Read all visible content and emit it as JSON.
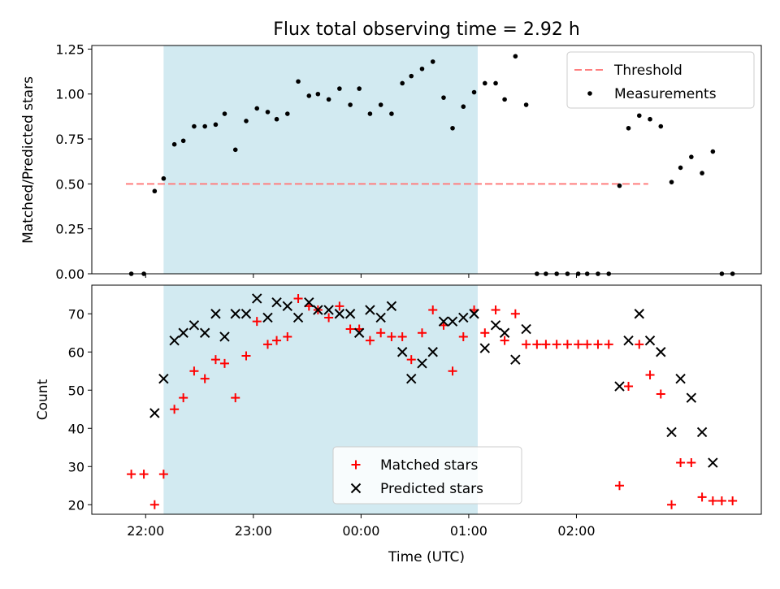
{
  "chart_data": [
    {
      "type": "scatter",
      "title": "Flux total observing time = 2.92 h",
      "xlabel": "",
      "ylabel": "Matched/Predicted stars",
      "ylim": [
        0.0,
        1.27
      ],
      "yticks": [
        "0.00",
        "0.25",
        "0.50",
        "0.75",
        "1.00",
        "1.25"
      ],
      "shaded_region": {
        "x_start": "22:10",
        "x_end": "01:05",
        "color": "#add8e6"
      },
      "threshold": {
        "name": "Threshold",
        "y": 0.5,
        "x_start": "21:49",
        "x_end": "02:40",
        "color": "#ff7f7f"
      },
      "series": [
        {
          "name": "Measurements",
          "marker": "dot",
          "color": "#000000",
          "points": [
            [
              "21:52",
              0.0
            ],
            [
              "21:59",
              0.0
            ],
            [
              "22:05",
              0.46
            ],
            [
              "22:10",
              0.53
            ],
            [
              "22:16",
              0.72
            ],
            [
              "22:21",
              0.74
            ],
            [
              "22:27",
              0.82
            ],
            [
              "22:33",
              0.82
            ],
            [
              "22:39",
              0.83
            ],
            [
              "22:44",
              0.89
            ],
            [
              "22:50",
              0.69
            ],
            [
              "22:56",
              0.85
            ],
            [
              "23:02",
              0.92
            ],
            [
              "23:08",
              0.9
            ],
            [
              "23:13",
              0.86
            ],
            [
              "23:19",
              0.89
            ],
            [
              "23:25",
              1.07
            ],
            [
              "23:31",
              0.99
            ],
            [
              "23:36",
              1.0
            ],
            [
              "23:42",
              0.97
            ],
            [
              "23:48",
              1.03
            ],
            [
              "23:54",
              0.94
            ],
            [
              "23:59",
              1.03
            ],
            [
              "00:05",
              0.89
            ],
            [
              "00:11",
              0.94
            ],
            [
              "00:17",
              0.89
            ],
            [
              "00:23",
              1.06
            ],
            [
              "00:28",
              1.1
            ],
            [
              "00:34",
              1.14
            ],
            [
              "00:40",
              1.18
            ],
            [
              "00:46",
              0.98
            ],
            [
              "00:51",
              0.81
            ],
            [
              "00:57",
              0.93
            ],
            [
              "01:03",
              1.01
            ],
            [
              "01:09",
              1.06
            ],
            [
              "01:15",
              1.06
            ],
            [
              "01:20",
              0.97
            ],
            [
              "01:26",
              1.21
            ],
            [
              "01:32",
              0.94
            ],
            [
              "01:38",
              0.0
            ],
            [
              "01:43",
              0.0
            ],
            [
              "01:49",
              0.0
            ],
            [
              "01:55",
              0.0
            ],
            [
              "02:01",
              0.0
            ],
            [
              "02:06",
              0.0
            ],
            [
              "02:12",
              0.0
            ],
            [
              "02:18",
              0.0
            ],
            [
              "02:24",
              0.49
            ],
            [
              "02:29",
              0.81
            ],
            [
              "02:35",
              0.88
            ],
            [
              "02:41",
              0.86
            ],
            [
              "02:47",
              0.82
            ],
            [
              "02:53",
              0.51
            ],
            [
              "02:58",
              0.59
            ],
            [
              "03:04",
              0.65
            ],
            [
              "03:10",
              0.56
            ],
            [
              "03:16",
              0.68
            ],
            [
              "03:21",
              0.0
            ],
            [
              "03:27",
              0.0
            ]
          ]
        }
      ],
      "legend": {
        "position": "top-right",
        "entries": [
          "Threshold",
          "Measurements"
        ]
      }
    },
    {
      "type": "scatter",
      "title": "",
      "xlabel": "Time (UTC)",
      "ylabel": "Count",
      "ylim": [
        17.5,
        77.5
      ],
      "yticks": [
        "20",
        "30",
        "40",
        "50",
        "60",
        "70"
      ],
      "xticks": [
        "22:00",
        "23:00",
        "00:00",
        "01:00",
        "02:00"
      ],
      "shaded_region": {
        "x_start": "22:10",
        "x_end": "01:05",
        "color": "#add8e6"
      },
      "series": [
        {
          "name": "Matched stars",
          "marker": "plus",
          "color": "#ff0000",
          "points": [
            [
              "21:52",
              28
            ],
            [
              "21:59",
              28
            ],
            [
              "22:05",
              20
            ],
            [
              "22:10",
              28
            ],
            [
              "22:16",
              45
            ],
            [
              "22:21",
              48
            ],
            [
              "22:27",
              55
            ],
            [
              "22:33",
              53
            ],
            [
              "22:39",
              58
            ],
            [
              "22:44",
              57
            ],
            [
              "22:50",
              48
            ],
            [
              "22:56",
              59
            ],
            [
              "23:02",
              68
            ],
            [
              "23:08",
              62
            ],
            [
              "23:13",
              63
            ],
            [
              "23:19",
              64
            ],
            [
              "23:25",
              74
            ],
            [
              "23:31",
              72
            ],
            [
              "23:36",
              71
            ],
            [
              "23:42",
              69
            ],
            [
              "23:48",
              72
            ],
            [
              "23:54",
              66
            ],
            [
              "23:59",
              66
            ],
            [
              "00:05",
              63
            ],
            [
              "00:11",
              65
            ],
            [
              "00:17",
              64
            ],
            [
              "00:23",
              64
            ],
            [
              "00:28",
              58
            ],
            [
              "00:34",
              65
            ],
            [
              "00:40",
              71
            ],
            [
              "00:46",
              67
            ],
            [
              "00:51",
              55
            ],
            [
              "00:57",
              64
            ],
            [
              "01:03",
              71
            ],
            [
              "01:09",
              65
            ],
            [
              "01:15",
              71
            ],
            [
              "01:20",
              63
            ],
            [
              "01:26",
              70
            ],
            [
              "01:32",
              62
            ],
            [
              "01:38",
              62
            ],
            [
              "01:43",
              62
            ],
            [
              "01:49",
              62
            ],
            [
              "01:55",
              62
            ],
            [
              "02:01",
              62
            ],
            [
              "02:06",
              62
            ],
            [
              "02:12",
              62
            ],
            [
              "02:18",
              62
            ],
            [
              "02:24",
              25
            ],
            [
              "02:29",
              51
            ],
            [
              "02:35",
              62
            ],
            [
              "02:41",
              54
            ],
            [
              "02:47",
              49
            ],
            [
              "02:53",
              20
            ],
            [
              "02:58",
              31
            ],
            [
              "03:04",
              31
            ],
            [
              "03:10",
              22
            ],
            [
              "03:16",
              21
            ],
            [
              "03:21",
              21
            ],
            [
              "03:27",
              21
            ]
          ]
        },
        {
          "name": "Predicted stars",
          "marker": "x",
          "color": "#000000",
          "points": [
            [
              "22:05",
              44
            ],
            [
              "22:10",
              53
            ],
            [
              "22:16",
              63
            ],
            [
              "22:21",
              65
            ],
            [
              "22:27",
              67
            ],
            [
              "22:33",
              65
            ],
            [
              "22:39",
              70
            ],
            [
              "22:44",
              64
            ],
            [
              "22:50",
              70
            ],
            [
              "22:56",
              70
            ],
            [
              "23:02",
              74
            ],
            [
              "23:08",
              69
            ],
            [
              "23:13",
              73
            ],
            [
              "23:19",
              72
            ],
            [
              "23:25",
              69
            ],
            [
              "23:31",
              73
            ],
            [
              "23:36",
              71
            ],
            [
              "23:42",
              71
            ],
            [
              "23:48",
              70
            ],
            [
              "23:54",
              70
            ],
            [
              "23:59",
              65
            ],
            [
              "00:05",
              71
            ],
            [
              "00:11",
              69
            ],
            [
              "00:17",
              72
            ],
            [
              "00:23",
              60
            ],
            [
              "00:28",
              53
            ],
            [
              "00:34",
              57
            ],
            [
              "00:40",
              60
            ],
            [
              "00:46",
              68
            ],
            [
              "00:51",
              68
            ],
            [
              "00:57",
              69
            ],
            [
              "01:03",
              70
            ],
            [
              "01:09",
              61
            ],
            [
              "01:15",
              67
            ],
            [
              "01:20",
              65
            ],
            [
              "01:26",
              58
            ],
            [
              "01:32",
              66
            ],
            [
              "02:24",
              51
            ],
            [
              "02:29",
              63
            ],
            [
              "02:35",
              70
            ],
            [
              "02:41",
              63
            ],
            [
              "02:47",
              60
            ],
            [
              "02:53",
              39
            ],
            [
              "02:58",
              53
            ],
            [
              "03:04",
              48
            ],
            [
              "03:10",
              39
            ],
            [
              "03:16",
              31
            ]
          ]
        }
      ],
      "legend": {
        "position": "bottom-center",
        "entries": [
          "Matched stars",
          "Predicted stars"
        ]
      }
    }
  ]
}
